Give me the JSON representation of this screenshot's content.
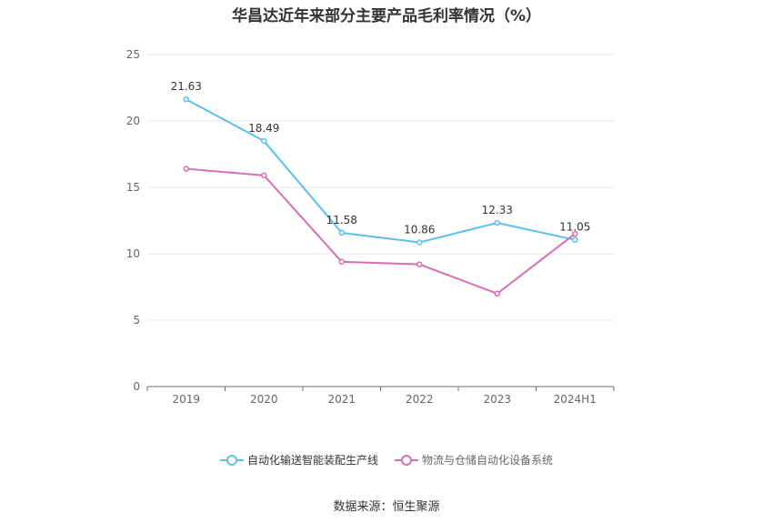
{
  "chart_data": {
    "type": "line",
    "title": "华昌达近年来部分主要产品毛利率情况（%）",
    "categories": [
      "2019",
      "2020",
      "2021",
      "2022",
      "2023",
      "2024H1"
    ],
    "series": [
      {
        "name": "自动化输送智能装配生产线",
        "color": "#5bc0eb",
        "values": [
          21.63,
          18.49,
          11.58,
          10.86,
          12.33,
          11.05
        ],
        "show_labels": true
      },
      {
        "name": "物流与仓储自动化设备系统",
        "color": "#d66fb3",
        "values": [
          16.4,
          15.9,
          9.4,
          9.2,
          7.0,
          11.5
        ],
        "show_labels": false
      }
    ],
    "ylim": [
      0,
      25
    ],
    "yticks": [
      0,
      5,
      10,
      15,
      20,
      25
    ],
    "grid": true,
    "legend_position": "bottom"
  },
  "source": "数据来源：恒生聚源"
}
